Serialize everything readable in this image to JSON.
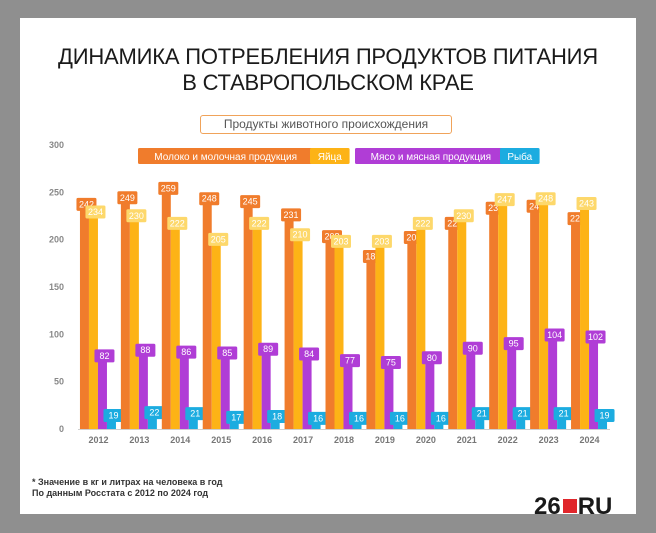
{
  "header": {
    "title": "ДИНАМИКА ПОТРЕБЛЕНИЯ ПРОДУКТОВ ПИТАНИЯ\nВ СТАВРОПОЛЬСКОМ КРАЕ",
    "subtitle": "Продукты животного происхождения"
  },
  "footer": {
    "note1": "* Значение в кг и литрах на человека в год",
    "note2": "По данным Росстата с 2012 по 2024 год",
    "logo_left": "26",
    "logo_right": "RU"
  },
  "chart_data": {
    "type": "bar",
    "title": "ДИНАМИКА ПОТРЕБЛЕНИЯ ПРОДУКТОВ ПИТАНИЯ В СТАВРОПОЛЬСКОМ КРАЕ",
    "subtitle": "Продукты животного происхождения",
    "xlabel": "",
    "ylabel": "",
    "ylim": [
      0,
      300
    ],
    "yticks": [
      0,
      50,
      100,
      150,
      200,
      250,
      300
    ],
    "grid": false,
    "legend_position": "top",
    "categories": [
      "2012",
      "2013",
      "2014",
      "2015",
      "2016",
      "2017",
      "2018",
      "2019",
      "2020",
      "2021",
      "2022",
      "2023",
      "2024"
    ],
    "series": [
      {
        "name": "Молоко и молочная продукция",
        "color": "#f07c2c",
        "label_bg": "#f07c2c",
        "label_color": "#ffffff",
        "values": [
          242,
          249,
          259,
          248,
          245,
          231,
          208,
          187,
          207,
          222,
          238,
          240,
          227
        ]
      },
      {
        "name": "Яйца",
        "color": "#fdb316",
        "label_bg": "#fdd86b",
        "label_color": "#ffffff",
        "values": [
          234,
          230,
          222,
          205,
          222,
          210,
          203,
          203,
          222,
          230,
          247,
          248,
          243
        ]
      },
      {
        "name": "Мясо и мясная продукция",
        "color": "#b03dd6",
        "label_bg": "#b03dd6",
        "label_color": "#ffffff",
        "values": [
          82,
          88,
          86,
          85,
          89,
          84,
          77,
          75,
          80,
          90,
          95,
          104,
          102
        ]
      },
      {
        "name": "Рыба",
        "color": "#1cace0",
        "label_bg": "#1cace0",
        "label_color": "#ffffff",
        "values": [
          19,
          22,
          21,
          17,
          18,
          16,
          16,
          16,
          16,
          21,
          21,
          21,
          19
        ]
      }
    ]
  }
}
